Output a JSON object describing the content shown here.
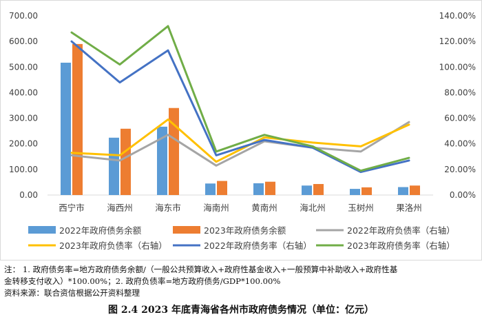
{
  "chart_data": {
    "type": "bar",
    "categories": [
      "西宁市",
      "海西州",
      "海东市",
      "海南州",
      "黄南州",
      "海北州",
      "玉树州",
      "果洛州"
    ],
    "series": [
      {
        "name": "2022年政府债务余额",
        "kind": "bar",
        "axis": "left",
        "color": "#5b9bd5",
        "values": [
          517,
          224,
          267,
          45,
          46,
          37,
          24,
          31
        ]
      },
      {
        "name": "2023年政府债务余额",
        "kind": "bar",
        "axis": "left",
        "color": "#ed7d31",
        "values": [
          590,
          259,
          340,
          55,
          52,
          43,
          30,
          37
        ]
      },
      {
        "name": "2022年政府负债率（右轴）",
        "kind": "line",
        "axis": "right",
        "color": "#a5a5a5",
        "values": [
          31,
          27,
          47,
          23,
          42,
          37,
          34,
          57
        ]
      },
      {
        "name": "2023年政府负债率（右轴）",
        "kind": "line",
        "axis": "right",
        "color": "#ffc000",
        "values": [
          33,
          31,
          59,
          26,
          45,
          41,
          38,
          55
        ]
      },
      {
        "name": "2022年政府债务率（右轴）",
        "kind": "line",
        "axis": "right",
        "color": "#4472c4",
        "values": [
          120,
          88,
          113,
          31,
          43,
          37,
          18,
          27
        ]
      },
      {
        "name": "2023年政府债务率（右轴）",
        "kind": "line",
        "axis": "right",
        "color": "#70ad47",
        "values": [
          127,
          102,
          132,
          34,
          47,
          38,
          19,
          29
        ]
      }
    ],
    "ylim_left": [
      0,
      700
    ],
    "ylim_right": [
      0,
      140
    ],
    "yticks_left": [
      "0.00",
      "100.00",
      "200.00",
      "300.00",
      "400.00",
      "500.00",
      "600.00",
      "700.00"
    ],
    "yticks_right": [
      "0.00%",
      "20.00%",
      "40.00%",
      "60.00%",
      "80.00%",
      "100.00%",
      "120.00%",
      "140.00%"
    ],
    "grid": false,
    "legend_position": "bottom"
  },
  "notes": {
    "line1": "注：  1. 政府债务率=地方政府债务余额/（一般公共预算收入+政府性基金收入+一般预算中补助收入+政府性基",
    "line2": "金转移支付收入）*100.00%；2. 政府负债率=地方政府债务/GDP*100.00%",
    "line3": "资料来源：联合资信根据公开资料整理"
  },
  "caption": "图 2.4    2023 年底青海省各州市政府债务情况（单位：亿元）"
}
